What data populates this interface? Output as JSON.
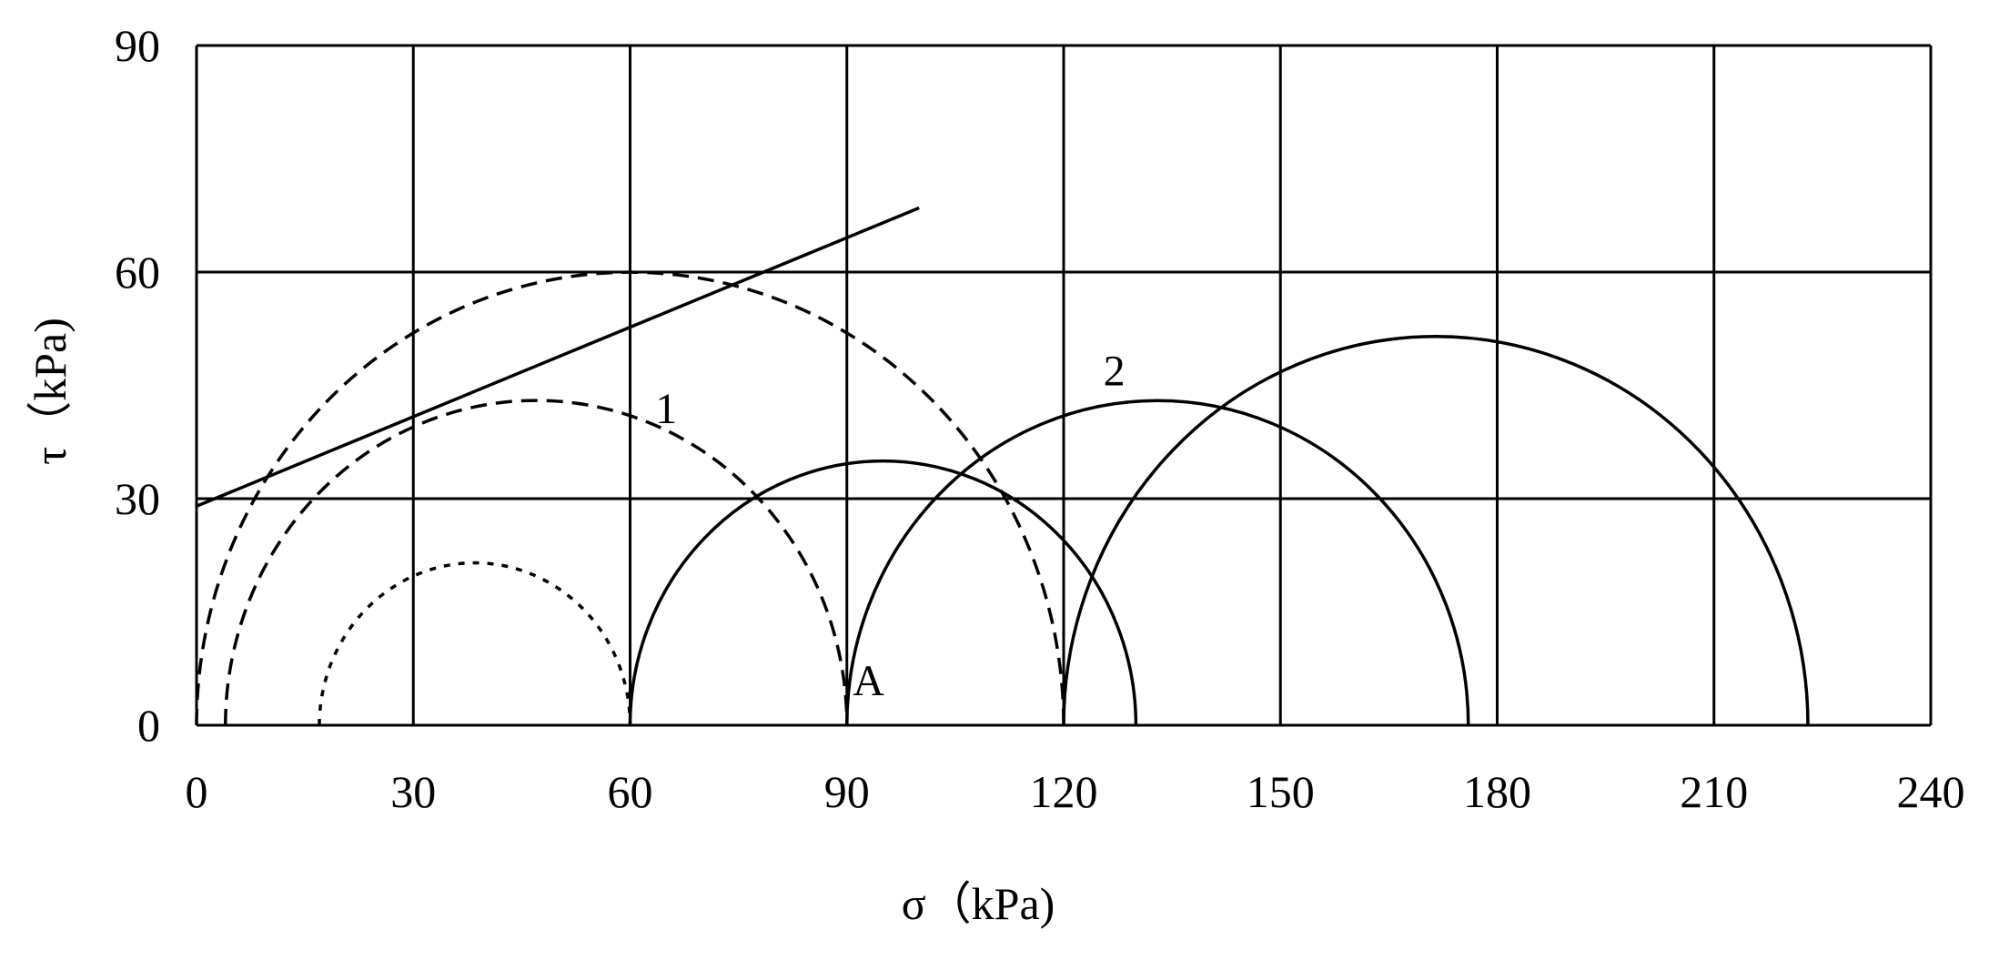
{
  "chart_data": {
    "type": "line",
    "title": "",
    "xlabel": "σ（kPa)",
    "ylabel": "τ（kPa)",
    "xlim": [
      0,
      240
    ],
    "ylim": [
      0,
      90
    ],
    "xticks": [
      "0",
      "30",
      "60",
      "90",
      "120",
      "150",
      "180",
      "210",
      "240"
    ],
    "yticks": [
      "0",
      "30",
      "60",
      "90"
    ],
    "grid": true,
    "legend": "none",
    "envelope": {
      "x": [
        0,
        100
      ],
      "y": [
        29,
        68.5
      ]
    },
    "circles": [
      {
        "group": "dashed",
        "sigma3": 4,
        "sigma1": 90
      },
      {
        "group": "dashed",
        "sigma3": 0,
        "sigma1": 120
      },
      {
        "group": "dotted",
        "sigma3": 17,
        "sigma1": 60
      },
      {
        "group": "solid",
        "sigma3": 60,
        "sigma1": 130
      },
      {
        "group": "solid",
        "sigma3": 90,
        "sigma1": 176
      },
      {
        "group": "solid",
        "sigma3": 120,
        "sigma1": 223
      }
    ],
    "annotations": [
      {
        "text": "1",
        "x": 65,
        "y": 40
      },
      {
        "text": "2",
        "x": 127,
        "y": 45
      },
      {
        "text": "A",
        "x": 93,
        "y": 4
      }
    ]
  }
}
